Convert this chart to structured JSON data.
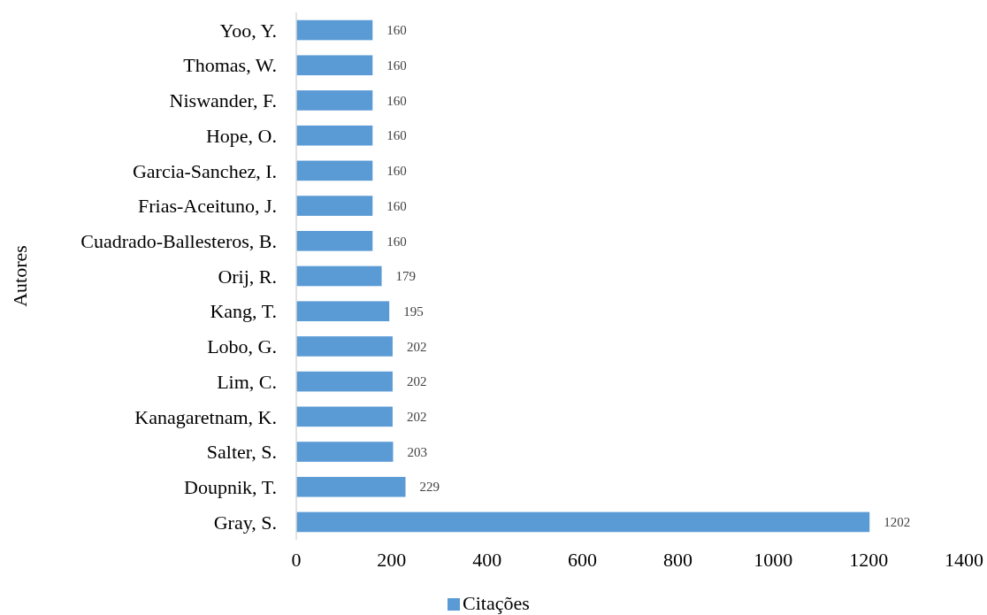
{
  "chart_data": {
    "type": "bar",
    "orientation": "horizontal",
    "ylabel": "Autores",
    "categories": [
      "Yoo, Y.",
      "Thomas, W.",
      "Niswander, F.",
      "Hope, O.",
      "Garcia-Sanchez, I.",
      "Frias-Aceituno, J.",
      "Cuadrado-Ballesteros, B.",
      "Orij, R.",
      "Kang, T.",
      "Lobo, G.",
      "Lim, C.",
      "Kanagaretnam, K.",
      "Salter, S.",
      "Doupnik, T.",
      "Gray, S."
    ],
    "series": [
      {
        "name": "Citações",
        "color": "#5b9bd5",
        "values": [
          160,
          160,
          160,
          160,
          160,
          160,
          160,
          179,
          195,
          202,
          202,
          202,
          203,
          229,
          1202
        ]
      }
    ],
    "xlim": [
      0,
      1400
    ],
    "xticks": [
      0,
      200,
      400,
      600,
      800,
      1000,
      1200,
      1400
    ],
    "data_labels": true,
    "legend": "bottom",
    "grid": false
  }
}
